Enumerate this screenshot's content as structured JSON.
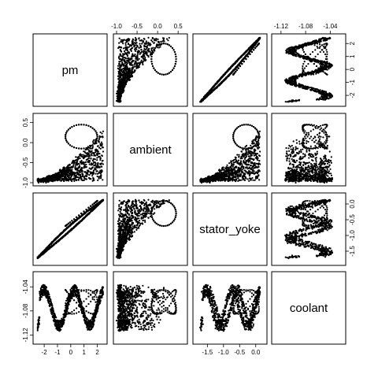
{
  "chart_data": {
    "type": "scatter",
    "plot_kind": "scatterplot-matrix",
    "variables": [
      "pm",
      "ambient",
      "stator_yoke",
      "coolant"
    ],
    "ranges": {
      "pm": [
        -2.6,
        2.5
      ],
      "ambient": [
        -1.0,
        0.65
      ],
      "stator_yoke": [
        -1.85,
        0.25
      ],
      "coolant": [
        -1.13,
        -1.02
      ]
    },
    "ticks": {
      "pm": [
        -2,
        -1,
        0,
        1,
        2
      ],
      "ambient": [
        -1.0,
        -0.5,
        0.0,
        0.5
      ],
      "stator_yoke": [
        -1.5,
        -1.0,
        -0.5,
        0.0
      ],
      "coolant": [
        -1.12,
        -1.08,
        -1.04
      ]
    },
    "tick_labels": {
      "pm": [
        "-2",
        "-1",
        "0",
        "1",
        "2"
      ],
      "ambient": [
        "-1.0",
        "-0.5",
        "0.0",
        "0.5"
      ],
      "stator_yoke": [
        "-1.5",
        "-1.0",
        "-0.5",
        "0.0"
      ],
      "coolant": [
        "-1.12",
        "-1.08",
        "-1.04"
      ]
    },
    "point_color": "#000000"
  }
}
